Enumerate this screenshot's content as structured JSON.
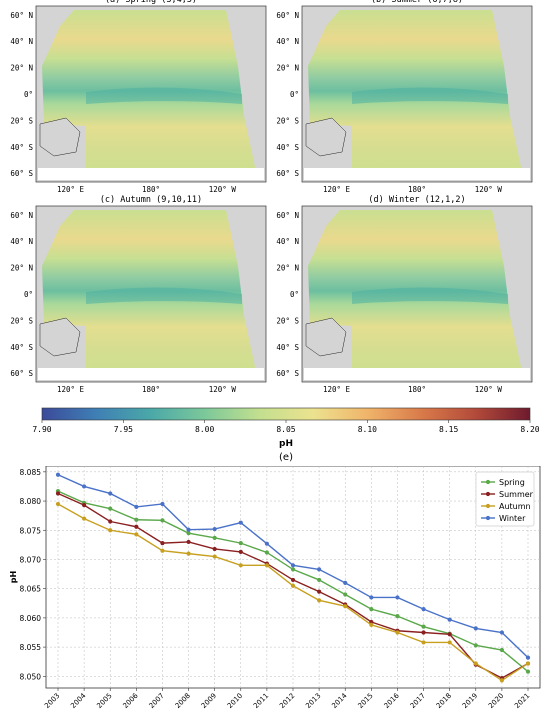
{
  "maps": [
    {
      "label": "(a) Spring (3,4,5)"
    },
    {
      "label": "(b) Summer (6,7,8)"
    },
    {
      "label": "(c) Autumn (9,10,11)"
    },
    {
      "label": "(d) Winter (12,1,2)"
    }
  ],
  "lat_ticks": [
    "60° N",
    "40° N",
    "20° N",
    "0°",
    "20° S",
    "40° S",
    "60° S"
  ],
  "lon_ticks": [
    "120° E",
    "180°",
    "120° W"
  ],
  "colorbar": {
    "label": "pH",
    "ticks": [
      "7.90",
      "7.95",
      "8.00",
      "8.05",
      "8.10",
      "8.15",
      "8.20"
    ],
    "colors": [
      "#3b4a9a",
      "#3f7fb5",
      "#4aa8a8",
      "#7cc89a",
      "#c2df8f",
      "#ece28f",
      "#f0b46a",
      "#d97a4a",
      "#b24a3a",
      "#6e1a2e"
    ]
  },
  "panel_e_label": "(e)",
  "chart_data": {
    "type": "line",
    "ylabel": "pH",
    "xlabel": "",
    "ylim": [
      8.048,
      8.086
    ],
    "yticks": [
      "8.050",
      "8.055",
      "8.060",
      "8.065",
      "8.070",
      "8.075",
      "8.080",
      "8.085"
    ],
    "x": [
      "2003",
      "2004",
      "2005",
      "2006",
      "2007",
      "2008",
      "2009",
      "2010",
      "2011",
      "2012",
      "2013",
      "2014",
      "2015",
      "2016",
      "2017",
      "2018",
      "2019",
      "2020",
      "2021"
    ],
    "grid": true,
    "legend": "top-right",
    "series": [
      {
        "name": "Spring",
        "color": "#5aa84a",
        "values": [
          8.0817,
          8.0797,
          8.0787,
          8.0768,
          8.0767,
          8.0745,
          8.0737,
          8.0728,
          8.0712,
          8.0683,
          8.0665,
          8.064,
          8.0615,
          8.0603,
          8.0585,
          8.0573,
          8.0553,
          8.0545,
          8.0508
        ]
      },
      {
        "name": "Summer",
        "color": "#8b2020",
        "values": [
          8.0813,
          8.0793,
          8.0765,
          8.0756,
          8.0728,
          8.073,
          8.0718,
          8.0713,
          8.0693,
          8.0665,
          8.0645,
          8.0623,
          8.0593,
          8.0578,
          8.0575,
          8.0572,
          8.052,
          8.0497,
          8.0522
        ]
      },
      {
        "name": "Autumn",
        "color": "#c8a020",
        "values": [
          8.0795,
          8.077,
          8.075,
          8.0743,
          8.0715,
          8.071,
          8.0705,
          8.069,
          8.069,
          8.0655,
          8.063,
          8.062,
          8.0588,
          8.0575,
          8.0558,
          8.0558,
          8.0522,
          8.0493,
          8.0522
        ]
      },
      {
        "name": "Winter",
        "color": "#4a72c8",
        "values": [
          8.0845,
          8.0825,
          8.0813,
          8.079,
          8.0795,
          8.0751,
          8.0752,
          8.0763,
          8.0727,
          8.069,
          8.0683,
          8.066,
          8.0635,
          8.0635,
          8.0615,
          8.0597,
          8.0582,
          8.0575,
          8.0532
        ]
      }
    ]
  }
}
